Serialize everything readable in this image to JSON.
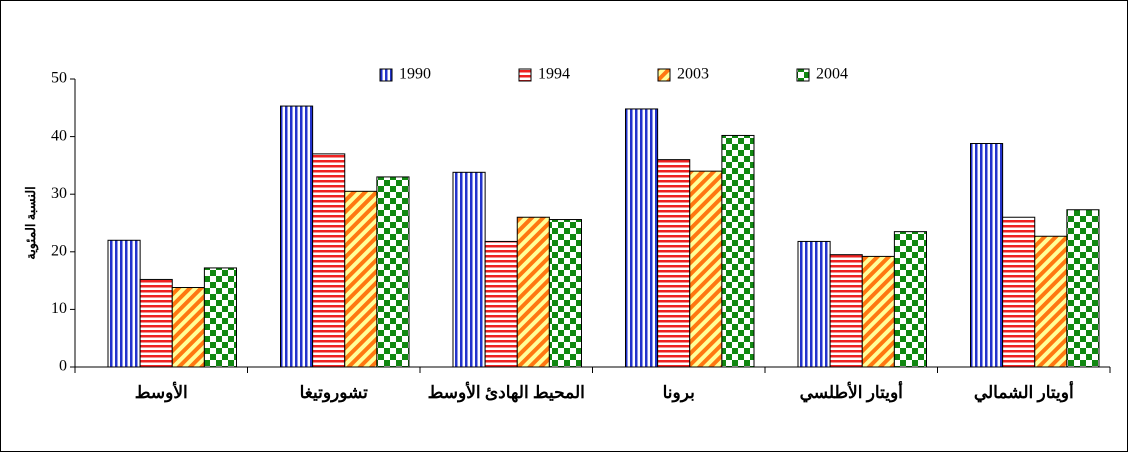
{
  "chart_data": {
    "type": "bar",
    "y_label": "النسبة المئوية",
    "categories": [
      "الأوسط",
      "تشوروتيغا",
      "المحيط الهادئ الأوسط",
      "برونا",
      "أويتار الأطلسي",
      "أويتار الشمالي"
    ],
    "series": [
      {
        "name": "1990",
        "color": "#2233cc",
        "pattern": "vertical",
        "values": [
          22,
          45.3,
          33.8,
          44.8,
          21.8,
          38.8
        ]
      },
      {
        "name": "1994",
        "color": "#ee2222",
        "pattern": "horizontal",
        "values": [
          15.2,
          37,
          21.8,
          36,
          19.5,
          26
        ]
      },
      {
        "name": "2003",
        "color": "#ff7711",
        "pattern": "diagonal",
        "values": [
          13.8,
          30.5,
          26,
          34,
          19.2,
          22.7
        ]
      },
      {
        "name": "2004",
        "color": "#118811",
        "pattern": "checker",
        "values": [
          17.2,
          33,
          25.6,
          40.2,
          23.5,
          27.3
        ]
      }
    ],
    "ylim": [
      0,
      50
    ],
    "yticks": [
      0,
      10,
      20,
      30,
      40,
      50
    ],
    "legend": "top"
  }
}
